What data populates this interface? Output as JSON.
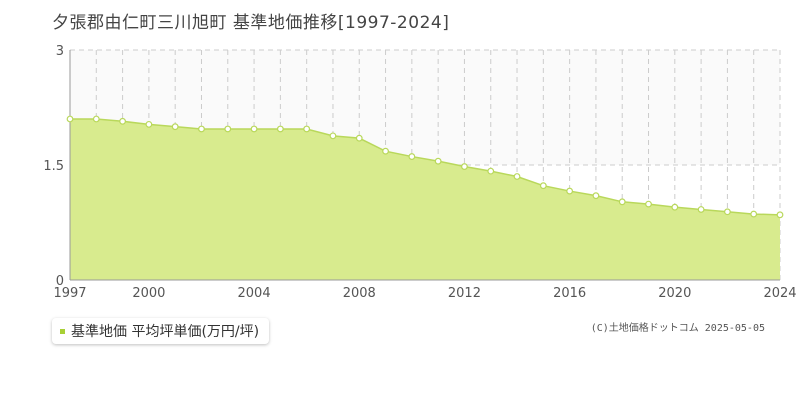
{
  "chart_data": {
    "type": "area",
    "title": "夕張郡由仁町三川旭町 基準地価推移[1997-2024]",
    "xlabel": "",
    "ylabel": "",
    "x": [
      1997,
      1998,
      1999,
      2000,
      2001,
      2002,
      2003,
      2004,
      2005,
      2006,
      2007,
      2008,
      2009,
      2010,
      2011,
      2012,
      2013,
      2014,
      2015,
      2016,
      2017,
      2018,
      2019,
      2020,
      2021,
      2022,
      2023,
      2024
    ],
    "series": [
      {
        "name": "基準地価 平均坪単価(万円/坪)",
        "values": [
          2.1,
          2.1,
          2.07,
          2.03,
          2.0,
          1.97,
          1.97,
          1.97,
          1.97,
          1.97,
          1.88,
          1.85,
          1.68,
          1.61,
          1.55,
          1.48,
          1.42,
          1.35,
          1.23,
          1.16,
          1.1,
          1.02,
          0.99,
          0.95,
          0.92,
          0.89,
          0.86,
          0.85
        ]
      }
    ],
    "ylim": [
      0,
      3
    ],
    "yticks": [
      "0",
      "1.5",
      "3"
    ],
    "xticks": [
      "1997",
      "2000",
      "2004",
      "2008",
      "2012",
      "2016",
      "2020",
      "2024"
    ],
    "xlim": [
      1997,
      2024
    ],
    "grid": true,
    "legend": "bottom-left",
    "colors": {
      "fill": "#d8eb8e",
      "line": "#b9d85b",
      "marker_fill": "#ffffff",
      "grid": "#cccccc",
      "swatch": "#a8d035"
    }
  },
  "legend_label": "基準地価 平均坪単価(万円/坪)",
  "credit": "(C)土地価格ドットコム 2025-05-05"
}
